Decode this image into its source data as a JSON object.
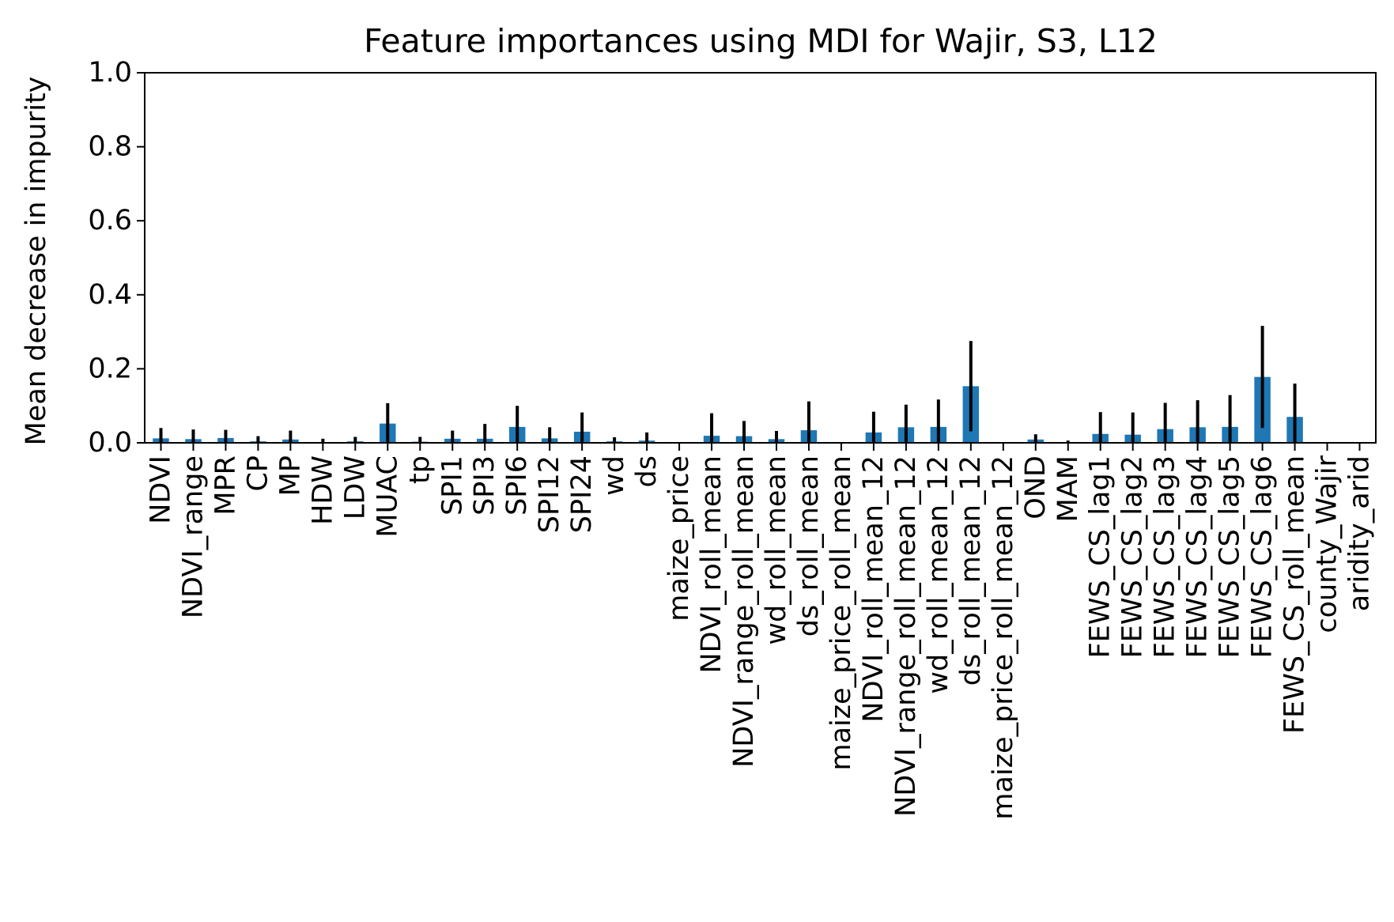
{
  "chart_data": {
    "type": "bar",
    "title": "Feature importances using MDI for Wajir, S3, L12",
    "xlabel": "",
    "ylabel": "Mean decrease in impurity",
    "ylim": [
      0,
      1.0
    ],
    "yticks": [
      "0.0",
      "0.2",
      "0.4",
      "0.6",
      "0.8",
      "1.0"
    ],
    "grid": false,
    "legend": "none",
    "bar_color": "#1f77b4",
    "error_color": "#000000",
    "categories": [
      "NDVI",
      "NDVI_range",
      "MPR",
      "CP",
      "MP",
      "HDW",
      "LDW",
      "MUAC",
      "tp",
      "SPI1",
      "SPI3",
      "SPI6",
      "SPI12",
      "SPI24",
      "wd",
      "ds",
      "maize_price",
      "NDVI_roll_mean",
      "NDVI_range_roll_mean",
      "wd_roll_mean",
      "ds_roll_mean",
      "maize_price_roll_mean",
      "NDVI_roll_mean_12",
      "NDVI_range_roll_mean_12",
      "wd_roll_mean_12",
      "ds_roll_mean_12",
      "maize_price_roll_mean_12",
      "OND",
      "MAM",
      "FEWS_CS_lag1",
      "FEWS_CS_lag2",
      "FEWS_CS_lag3",
      "FEWS_CS_lag4",
      "FEWS_CS_lag5",
      "FEWS_CS_lag6",
      "FEWS_CS_roll_mean",
      "county_Wajir",
      "aridity_arid"
    ],
    "series": [
      {
        "values": [
          0.012,
          0.01,
          0.013,
          0.004,
          0.009,
          0.002,
          0.004,
          0.052,
          0.003,
          0.011,
          0.011,
          0.043,
          0.012,
          0.03,
          0.004,
          0.006,
          0.0,
          0.019,
          0.018,
          0.01,
          0.034,
          0.0,
          0.028,
          0.042,
          0.043,
          0.153,
          0.0,
          0.009,
          0.001,
          0.024,
          0.022,
          0.037,
          0.042,
          0.043,
          0.178,
          0.07,
          0.0,
          0.0
        ],
        "errors": [
          0.028,
          0.026,
          0.022,
          0.014,
          0.024,
          0.009,
          0.012,
          0.055,
          0.013,
          0.022,
          0.04,
          0.057,
          0.03,
          0.052,
          0.011,
          0.022,
          0.0,
          0.061,
          0.041,
          0.022,
          0.078,
          0.0,
          0.056,
          0.061,
          0.074,
          0.122,
          0.0,
          0.014,
          0.005,
          0.059,
          0.06,
          0.071,
          0.073,
          0.086,
          0.138,
          0.09,
          0.0,
          0.0
        ]
      }
    ]
  }
}
